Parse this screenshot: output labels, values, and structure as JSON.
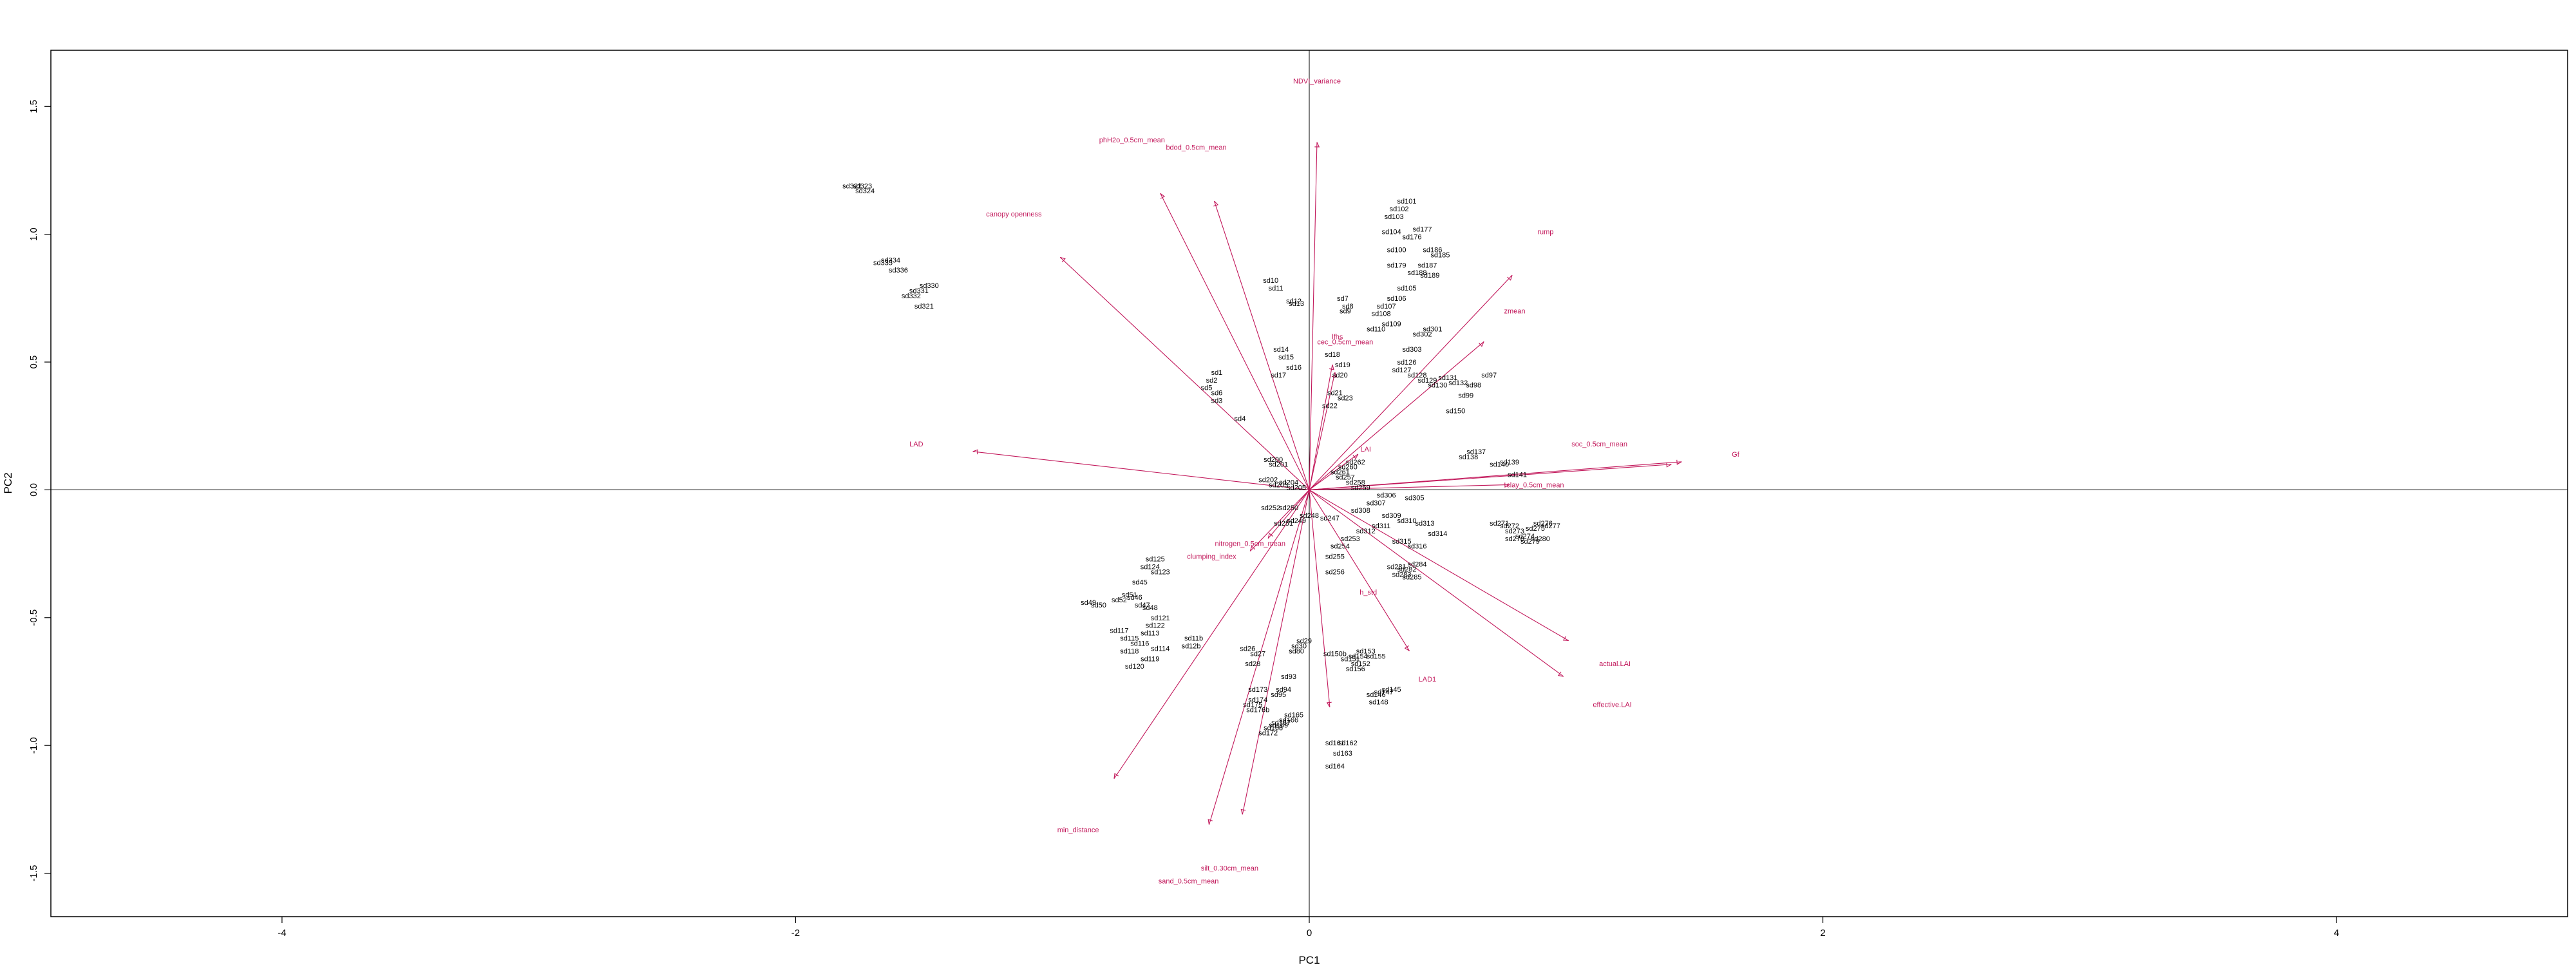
{
  "chart_data": {
    "type": "scatter",
    "subtype": "biplot",
    "title": "",
    "xlabel": "PC1",
    "ylabel": "PC2",
    "xlim": [
      -4.9,
      4.9
    ],
    "ylim": [
      -1.67,
      1.72
    ],
    "xticks": [
      -4,
      -2,
      0,
      2,
      4
    ],
    "yticks": [
      -1.5,
      -1.0,
      -0.5,
      0.0,
      0.5,
      1.0,
      1.5
    ],
    "xtick_labels": [
      "-4",
      "-2",
      "0",
      "2",
      "4"
    ],
    "ytick_labels": [
      "-1.5",
      "-1.0",
      "-0.5",
      "0.0",
      "0.5",
      "1.0",
      "1.5"
    ],
    "reference_lines": {
      "x": 0,
      "y": 0
    },
    "grid": false,
    "legend": "none",
    "colors": {
      "points": "#000000",
      "loadings": "#c2185b",
      "axes": "#000000"
    },
    "points": [
      {
        "label": "sd322",
        "x": -1.78,
        "y": 1.19
      },
      {
        "label": "sd323",
        "x": -1.74,
        "y": 1.19
      },
      {
        "label": "sd324",
        "x": -1.73,
        "y": 1.17
      },
      {
        "label": "sd334",
        "x": -1.63,
        "y": 0.9
      },
      {
        "label": "sd335",
        "x": -1.66,
        "y": 0.89
      },
      {
        "label": "sd336",
        "x": -1.6,
        "y": 0.86
      },
      {
        "label": "sd330",
        "x": -1.48,
        "y": 0.8
      },
      {
        "label": "sd331",
        "x": -1.52,
        "y": 0.78
      },
      {
        "label": "sd332",
        "x": -1.55,
        "y": 0.76
      },
      {
        "label": "sd321",
        "x": -1.5,
        "y": 0.72
      },
      {
        "label": "sd1",
        "x": -0.36,
        "y": 0.46
      },
      {
        "label": "sd2",
        "x": -0.38,
        "y": 0.43
      },
      {
        "label": "sd3",
        "x": -0.36,
        "y": 0.35
      },
      {
        "label": "sd4",
        "x": -0.27,
        "y": 0.28
      },
      {
        "label": "sd5",
        "x": -0.4,
        "y": 0.4
      },
      {
        "label": "sd6",
        "x": -0.36,
        "y": 0.38
      },
      {
        "label": "sd7",
        "x": 0.13,
        "y": 0.75
      },
      {
        "label": "sd8",
        "x": 0.15,
        "y": 0.72
      },
      {
        "label": "sd9",
        "x": 0.14,
        "y": 0.7
      },
      {
        "label": "sd10",
        "x": -0.15,
        "y": 0.82
      },
      {
        "label": "sd11",
        "x": -0.13,
        "y": 0.79
      },
      {
        "label": "sd12",
        "x": -0.06,
        "y": 0.74
      },
      {
        "label": "sd13",
        "x": -0.05,
        "y": 0.73
      },
      {
        "label": "sd14",
        "x": -0.11,
        "y": 0.55
      },
      {
        "label": "sd15",
        "x": -0.09,
        "y": 0.52
      },
      {
        "label": "sd16",
        "x": -0.06,
        "y": 0.48
      },
      {
        "label": "sd17",
        "x": -0.12,
        "y": 0.45
      },
      {
        "label": "sd18",
        "x": 0.09,
        "y": 0.53
      },
      {
        "label": "sd19",
        "x": 0.13,
        "y": 0.49
      },
      {
        "label": "sd20",
        "x": 0.12,
        "y": 0.45
      },
      {
        "label": "sd21",
        "x": 0.1,
        "y": 0.38
      },
      {
        "label": "sd22",
        "x": 0.08,
        "y": 0.33
      },
      {
        "label": "sd23",
        "x": 0.14,
        "y": 0.36
      },
      {
        "label": "sd101",
        "x": 0.38,
        "y": 1.13
      },
      {
        "label": "sd102",
        "x": 0.35,
        "y": 1.1
      },
      {
        "label": "sd103",
        "x": 0.33,
        "y": 1.07
      },
      {
        "label": "sd104",
        "x": 0.32,
        "y": 1.01
      },
      {
        "label": "sd177",
        "x": 0.44,
        "y": 1.02
      },
      {
        "label": "sd176",
        "x": 0.4,
        "y": 0.99
      },
      {
        "label": "sd100",
        "x": 0.34,
        "y": 0.94
      },
      {
        "label": "sd186",
        "x": 0.48,
        "y": 0.94
      },
      {
        "label": "sd185",
        "x": 0.51,
        "y": 0.92
      },
      {
        "label": "sd179",
        "x": 0.34,
        "y": 0.88
      },
      {
        "label": "sd187",
        "x": 0.46,
        "y": 0.88
      },
      {
        "label": "sd188",
        "x": 0.42,
        "y": 0.85
      },
      {
        "label": "sd189",
        "x": 0.47,
        "y": 0.84
      },
      {
        "label": "sd105",
        "x": 0.38,
        "y": 0.79
      },
      {
        "label": "sd106",
        "x": 0.34,
        "y": 0.75
      },
      {
        "label": "sd107",
        "x": 0.3,
        "y": 0.72
      },
      {
        "label": "sd108",
        "x": 0.28,
        "y": 0.69
      },
      {
        "label": "sd109",
        "x": 0.32,
        "y": 0.65
      },
      {
        "label": "sd110",
        "x": 0.26,
        "y": 0.63
      },
      {
        "label": "sd301",
        "x": 0.48,
        "y": 0.63
      },
      {
        "label": "sd302",
        "x": 0.44,
        "y": 0.61
      },
      {
        "label": "sd303",
        "x": 0.4,
        "y": 0.55
      },
      {
        "label": "sd126",
        "x": 0.38,
        "y": 0.5
      },
      {
        "label": "sd127",
        "x": 0.36,
        "y": 0.47
      },
      {
        "label": "sd128",
        "x": 0.42,
        "y": 0.45
      },
      {
        "label": "sd129",
        "x": 0.46,
        "y": 0.43
      },
      {
        "label": "sd130",
        "x": 0.5,
        "y": 0.41
      },
      {
        "label": "sd131",
        "x": 0.54,
        "y": 0.44
      },
      {
        "label": "sd132",
        "x": 0.58,
        "y": 0.42
      },
      {
        "label": "sd97",
        "x": 0.7,
        "y": 0.45
      },
      {
        "label": "sd98",
        "x": 0.64,
        "y": 0.41
      },
      {
        "label": "sd99",
        "x": 0.61,
        "y": 0.37
      },
      {
        "label": "sd150",
        "x": 0.57,
        "y": 0.31
      },
      {
        "label": "sd137",
        "x": 0.65,
        "y": 0.15
      },
      {
        "label": "sd138",
        "x": 0.62,
        "y": 0.13
      },
      {
        "label": "sd139",
        "x": 0.78,
        "y": 0.11
      },
      {
        "label": "sd140",
        "x": 0.74,
        "y": 0.1
      },
      {
        "label": "sd141",
        "x": 0.81,
        "y": 0.06
      },
      {
        "label": "sd200",
        "x": -0.14,
        "y": 0.12
      },
      {
        "label": "sd201",
        "x": -0.12,
        "y": 0.1
      },
      {
        "label": "sd202",
        "x": -0.16,
        "y": 0.04
      },
      {
        "label": "sd203",
        "x": -0.12,
        "y": 0.02
      },
      {
        "label": "sd204",
        "x": -0.08,
        "y": 0.03
      },
      {
        "label": "sd205",
        "x": -0.05,
        "y": 0.01
      },
      {
        "label": "sd260",
        "x": 0.15,
        "y": 0.09
      },
      {
        "label": "sd261",
        "x": 0.12,
        "y": 0.07
      },
      {
        "label": "sd262",
        "x": 0.18,
        "y": 0.11
      },
      {
        "label": "sd257",
        "x": 0.14,
        "y": 0.05
      },
      {
        "label": "sd258",
        "x": 0.18,
        "y": 0.03
      },
      {
        "label": "sd259",
        "x": 0.2,
        "y": 0.01
      },
      {
        "label": "sd305",
        "x": 0.41,
        "y": -0.03
      },
      {
        "label": "sd306",
        "x": 0.3,
        "y": -0.02
      },
      {
        "label": "sd307",
        "x": 0.26,
        "y": -0.05
      },
      {
        "label": "sd308",
        "x": 0.2,
        "y": -0.08
      },
      {
        "label": "sd309",
        "x": 0.32,
        "y": -0.1
      },
      {
        "label": "sd310",
        "x": 0.38,
        "y": -0.12
      },
      {
        "label": "sd311",
        "x": 0.28,
        "y": -0.14
      },
      {
        "label": "sd312",
        "x": 0.22,
        "y": -0.16
      },
      {
        "label": "sd313",
        "x": 0.45,
        "y": -0.13
      },
      {
        "label": "sd314",
        "x": 0.5,
        "y": -0.17
      },
      {
        "label": "sd315",
        "x": 0.36,
        "y": -0.2
      },
      {
        "label": "sd316",
        "x": 0.42,
        "y": -0.22
      },
      {
        "label": "sd247",
        "x": 0.08,
        "y": -0.11
      },
      {
        "label": "sd248",
        "x": 0.0,
        "y": -0.1
      },
      {
        "label": "sd249",
        "x": -0.05,
        "y": -0.12
      },
      {
        "label": "sd250",
        "x": -0.08,
        "y": -0.07
      },
      {
        "label": "sd251",
        "x": -0.1,
        "y": -0.13
      },
      {
        "label": "sd252",
        "x": -0.15,
        "y": -0.07
      },
      {
        "label": "sd253",
        "x": 0.16,
        "y": -0.19
      },
      {
        "label": "sd254",
        "x": 0.12,
        "y": -0.22
      },
      {
        "label": "sd255",
        "x": 0.1,
        "y": -0.26
      },
      {
        "label": "sd256",
        "x": 0.1,
        "y": -0.32
      },
      {
        "label": "sd271",
        "x": 0.74,
        "y": -0.13
      },
      {
        "label": "sd272",
        "x": 0.78,
        "y": -0.14
      },
      {
        "label": "sd273",
        "x": 0.8,
        "y": -0.16
      },
      {
        "label": "sd274",
        "x": 0.84,
        "y": -0.18
      },
      {
        "label": "sd275",
        "x": 0.88,
        "y": -0.15
      },
      {
        "label": "sd276",
        "x": 0.91,
        "y": -0.13
      },
      {
        "label": "sd277",
        "x": 0.94,
        "y": -0.14
      },
      {
        "label": "sd278",
        "x": 0.8,
        "y": -0.19
      },
      {
        "label": "sd279",
        "x": 0.86,
        "y": -0.2
      },
      {
        "label": "sd280",
        "x": 0.9,
        "y": -0.19
      },
      {
        "label": "sd281",
        "x": 0.34,
        "y": -0.3
      },
      {
        "label": "sd282",
        "x": 0.38,
        "y": -0.31
      },
      {
        "label": "sd283",
        "x": 0.36,
        "y": -0.33
      },
      {
        "label": "sd284",
        "x": 0.42,
        "y": -0.29
      },
      {
        "label": "sd285",
        "x": 0.4,
        "y": -0.34
      },
      {
        "label": "sd125",
        "x": -0.6,
        "y": -0.27
      },
      {
        "label": "sd124",
        "x": -0.62,
        "y": -0.3
      },
      {
        "label": "sd123",
        "x": -0.58,
        "y": -0.32
      },
      {
        "label": "sd45",
        "x": -0.66,
        "y": -0.36
      },
      {
        "label": "sd46",
        "x": -0.68,
        "y": -0.42
      },
      {
        "label": "sd47",
        "x": -0.65,
        "y": -0.45
      },
      {
        "label": "sd48",
        "x": -0.62,
        "y": -0.46
      },
      {
        "label": "sd49",
        "x": -0.86,
        "y": -0.44
      },
      {
        "label": "sd50",
        "x": -0.82,
        "y": -0.45
      },
      {
        "label": "sd51",
        "x": -0.7,
        "y": -0.41
      },
      {
        "label": "sd52",
        "x": -0.74,
        "y": -0.43
      },
      {
        "label": "sd121",
        "x": -0.58,
        "y": -0.5
      },
      {
        "label": "sd122",
        "x": -0.6,
        "y": -0.53
      },
      {
        "label": "sd113",
        "x": -0.62,
        "y": -0.56
      },
      {
        "label": "sd114",
        "x": -0.58,
        "y": -0.62
      },
      {
        "label": "sd115",
        "x": -0.7,
        "y": -0.58
      },
      {
        "label": "sd116",
        "x": -0.66,
        "y": -0.6
      },
      {
        "label": "sd117",
        "x": -0.74,
        "y": -0.55
      },
      {
        "label": "sd118",
        "x": -0.7,
        "y": -0.63
      },
      {
        "label": "sd119",
        "x": -0.62,
        "y": -0.66
      },
      {
        "label": "sd120",
        "x": -0.68,
        "y": -0.69
      },
      {
        "label": "sd11b",
        "x": -0.45,
        "y": -0.58
      },
      {
        "label": "sd12b",
        "x": -0.46,
        "y": -0.61
      },
      {
        "label": "sd26",
        "x": -0.24,
        "y": -0.62
      },
      {
        "label": "sd27",
        "x": -0.2,
        "y": -0.64
      },
      {
        "label": "sd28",
        "x": -0.22,
        "y": -0.68
      },
      {
        "label": "sd29",
        "x": -0.02,
        "y": -0.59
      },
      {
        "label": "sd30",
        "x": -0.04,
        "y": -0.61
      },
      {
        "label": "sd80",
        "x": -0.05,
        "y": -0.63
      },
      {
        "label": "sd93",
        "x": -0.08,
        "y": -0.73
      },
      {
        "label": "sd94",
        "x": -0.1,
        "y": -0.78
      },
      {
        "label": "sd95",
        "x": -0.12,
        "y": -0.8
      },
      {
        "label": "sd173",
        "x": -0.2,
        "y": -0.78
      },
      {
        "label": "sd174",
        "x": -0.2,
        "y": -0.82
      },
      {
        "label": "sd175",
        "x": -0.22,
        "y": -0.84
      },
      {
        "label": "sd176b",
        "x": -0.2,
        "y": -0.86
      },
      {
        "label": "sd165",
        "x": -0.06,
        "y": -0.88
      },
      {
        "label": "sd166",
        "x": -0.08,
        "y": -0.9
      },
      {
        "label": "sd167",
        "x": -0.11,
        "y": -0.91
      },
      {
        "label": "sd168",
        "x": -0.14,
        "y": -0.93
      },
      {
        "label": "sd169",
        "x": -0.12,
        "y": -0.92
      },
      {
        "label": "sd172",
        "x": -0.16,
        "y": -0.95
      },
      {
        "label": "sd150b",
        "x": 0.1,
        "y": -0.64
      },
      {
        "label": "sd151",
        "x": 0.16,
        "y": -0.66
      },
      {
        "label": "sd152",
        "x": 0.2,
        "y": -0.68
      },
      {
        "label": "sd153",
        "x": 0.22,
        "y": -0.63
      },
      {
        "label": "sd154",
        "x": 0.19,
        "y": -0.65
      },
      {
        "label": "sd155",
        "x": 0.26,
        "y": -0.65
      },
      {
        "label": "sd156",
        "x": 0.18,
        "y": -0.7
      },
      {
        "label": "sd145",
        "x": 0.32,
        "y": -0.78
      },
      {
        "label": "sd146",
        "x": 0.26,
        "y": -0.8
      },
      {
        "label": "sd147",
        "x": 0.29,
        "y": -0.79
      },
      {
        "label": "sd148",
        "x": 0.27,
        "y": -0.83
      },
      {
        "label": "sd161",
        "x": 0.1,
        "y": -0.99
      },
      {
        "label": "sd162",
        "x": 0.15,
        "y": -0.99
      },
      {
        "label": "sd163",
        "x": 0.13,
        "y": -1.03
      },
      {
        "label": "sd164",
        "x": 0.1,
        "y": -1.08
      }
    ],
    "loadings": [
      {
        "name": "NDVI_variance",
        "x": 0.03,
        "y": 1.36,
        "label_x": 0.03,
        "label_y": 1.59
      },
      {
        "name": "phH2o_0.5cm_mean",
        "x": -0.58,
        "y": 1.16,
        "label_x": -0.69,
        "label_y": 1.36
      },
      {
        "name": "bdod_0.5cm_mean",
        "x": -0.37,
        "y": 1.13,
        "label_x": -0.44,
        "label_y": 1.33
      },
      {
        "name": "canopy openness",
        "x": -0.97,
        "y": 0.91,
        "label_x": -1.15,
        "label_y": 1.07
      },
      {
        "name": "rump",
        "x": 0.79,
        "y": 0.84,
        "label_x": 0.92,
        "label_y": 1.0
      },
      {
        "name": "zmean",
        "x": 0.68,
        "y": 0.58,
        "label_x": 0.8,
        "label_y": 0.69
      },
      {
        "name": "lfhs",
        "x": 0.09,
        "y": 0.49,
        "label_x": 0.11,
        "label_y": 0.59
      },
      {
        "name": "cec_0.5cm_mean",
        "x": 0.1,
        "y": 0.46,
        "label_x": 0.14,
        "label_y": 0.57
      },
      {
        "name": "LAD",
        "x": -1.31,
        "y": 0.15,
        "label_x": -1.53,
        "label_y": 0.17
      },
      {
        "name": "Gf",
        "x": 1.41,
        "y": 0.1,
        "label_x": 1.66,
        "label_y": 0.13
      },
      {
        "name": "soc_0.5cm_mean",
        "x": 1.45,
        "y": 0.11,
        "label_x": 1.13,
        "label_y": 0.17
      },
      {
        "name": "clay_0.5cm_mean",
        "x": 0.78,
        "y": 0.02,
        "label_x": 0.88,
        "label_y": 0.01
      },
      {
        "name": "LAI",
        "x": 0.19,
        "y": 0.14,
        "label_x": 0.22,
        "label_y": 0.15
      },
      {
        "name": "nitrogen_0.5cm_mean",
        "x": -0.16,
        "y": -0.19,
        "label_x": -0.23,
        "label_y": -0.22
      },
      {
        "name": "clumping_index",
        "x": -0.23,
        "y": -0.24,
        "label_x": -0.38,
        "label_y": -0.27
      },
      {
        "name": "h_std",
        "x": 0.39,
        "y": -0.63,
        "label_x": 0.23,
        "label_y": -0.41
      },
      {
        "name": "LAD1",
        "x": 0.08,
        "y": -0.85,
        "label_x": 0.46,
        "label_y": -0.75
      },
      {
        "name": "actual.LAI",
        "x": 1.01,
        "y": -0.59,
        "label_x": 1.19,
        "label_y": -0.69
      },
      {
        "name": "effective.LAI",
        "x": 0.99,
        "y": -0.73,
        "label_x": 1.18,
        "label_y": -0.85
      },
      {
        "name": "min_distance",
        "x": -0.76,
        "y": -1.13,
        "label_x": -0.9,
        "label_y": -1.34
      },
      {
        "name": "silt_0.30cm_mean",
        "x": -0.39,
        "y": -1.31,
        "label_x": -0.31,
        "label_y": -1.49
      },
      {
        "name": "sand_0.5cm_mean",
        "x": -0.26,
        "y": -1.27,
        "label_x": -0.47,
        "label_y": -1.54
      }
    ]
  }
}
